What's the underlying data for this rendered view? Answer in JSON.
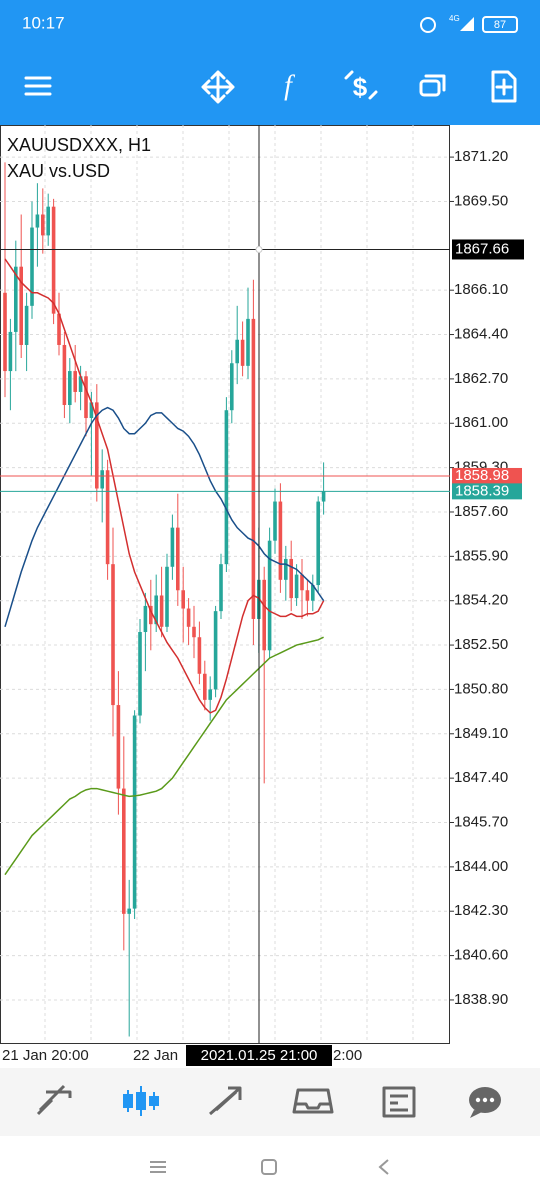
{
  "status_bar": {
    "time": "10:17",
    "network": "4G",
    "battery": "87"
  },
  "chart_data": {
    "type": "candlestick",
    "title": "XAUUSDXXX, H1",
    "subtitle": "XAU vs.USD",
    "up_color": "#26a69a",
    "down_color": "#ef5350",
    "open": [
      1866,
      1863,
      1864.5,
      1867,
      1864,
      1865.5,
      1868.5,
      1869,
      1868.2,
      1869.3,
      1865.2,
      1864,
      1861.7,
      1863,
      1862.2,
      1862.8,
      1861.2,
      1861.8,
      1858.5,
      1859.2,
      1855.6,
      1850.2,
      1847,
      1842.2,
      1842.4,
      1849.8,
      1853,
      1854,
      1853.3,
      1854.4,
      1853.2,
      1855.5,
      1857,
      1854.6,
      1853.9,
      1853.2,
      1852.8,
      1851.4,
      1850.4,
      1850.8,
      1853.8,
      1855.6,
      1861.5,
      1863.3,
      1864.2,
      1863.2,
      1865,
      1853.5,
      1855,
      1852.3,
      1856.5,
      1858,
      1855,
      1855.8,
      1854.3,
      1855.2,
      1854.6,
      1854.2,
      1854.8,
      1858
    ],
    "high": [
      1871,
      1865,
      1868,
      1869,
      1866,
      1869.5,
      1870.2,
      1870,
      1869.8,
      1869.6,
      1866,
      1864.5,
      1863.5,
      1864,
      1863.2,
      1863,
      1862.2,
      1862.5,
      1860,
      1859.6,
      1857,
      1851.5,
      1849,
      1843.5,
      1850,
      1853.5,
      1854.5,
      1855,
      1855.2,
      1855.5,
      1856,
      1857.5,
      1858.3,
      1855.5,
      1854.3,
      1854,
      1853.4,
      1851.9,
      1851.3,
      1854,
      1856,
      1862,
      1863.8,
      1865.5,
      1864.9,
      1866.2,
      1866.5,
      1857,
      1855.5,
      1857,
      1858.5,
      1858.7,
      1856.3,
      1856.5,
      1855.6,
      1855.8,
      1855,
      1855.2,
      1858.2,
      1859.5
    ],
    "low": [
      1862,
      1861.5,
      1863,
      1863.5,
      1863,
      1865,
      1867,
      1867.5,
      1867.8,
      1864.8,
      1863.6,
      1861.2,
      1861,
      1861.8,
      1861.5,
      1860.5,
      1859,
      1858,
      1857.2,
      1855,
      1849,
      1846,
      1840.8,
      1837.5,
      1842,
      1849.5,
      1851.5,
      1852.3,
      1853,
      1852.8,
      1853,
      1855,
      1854,
      1852.6,
      1852.5,
      1852,
      1851,
      1850,
      1849.6,
      1850.5,
      1853.5,
      1855.3,
      1861,
      1862.5,
      1862.8,
      1862.7,
      1852.5,
      1852.2,
      1847.2,
      1852,
      1856,
      1854.5,
      1854.2,
      1853.8,
      1854,
      1853.5,
      1853.6,
      1853.8,
      1854.5,
      1857.5
    ],
    "close": [
      1863,
      1864.5,
      1867,
      1864,
      1865.5,
      1868.5,
      1869,
      1868.2,
      1869.3,
      1865.2,
      1864,
      1861.7,
      1863,
      1862.2,
      1862.8,
      1861.2,
      1861.8,
      1858.5,
      1859.2,
      1855.6,
      1850.2,
      1847,
      1842.2,
      1842.4,
      1849.8,
      1853,
      1854,
      1853.3,
      1854.4,
      1853.2,
      1855.5,
      1857,
      1854.6,
      1853.9,
      1853.2,
      1852.8,
      1851.4,
      1850.4,
      1850.8,
      1853.8,
      1855.6,
      1861.5,
      1863.3,
      1864.2,
      1863.2,
      1865,
      1853.5,
      1855,
      1852.3,
      1856.5,
      1858,
      1855,
      1855.8,
      1854.3,
      1855.2,
      1854.6,
      1854.2,
      1854.8,
      1858,
      1858.39
    ],
    "moving_averages": [
      {
        "color": "#d32f2f",
        "values": [
          1867.3,
          1867.0,
          1866.7,
          1866.4,
          1866.2,
          1866.0,
          1866.0,
          1865.9,
          1865.8,
          1865.6,
          1865.2,
          1864.6,
          1864.0,
          1863.4,
          1862.8,
          1862.3,
          1861.8,
          1861.2,
          1860.6,
          1860.0,
          1859.0,
          1858.0,
          1857.0,
          1856.0,
          1855.3,
          1854.8,
          1854.3,
          1853.8,
          1853.4,
          1853.0,
          1852.6,
          1852.3,
          1852.0,
          1851.6,
          1851.2,
          1850.8,
          1850.4,
          1850.1,
          1849.9,
          1850.0,
          1850.5,
          1851.2,
          1852.0,
          1852.8,
          1853.6,
          1854.2,
          1854.4,
          1854.3,
          1854.0,
          1853.8,
          1853.7,
          1853.6,
          1853.6,
          1853.7,
          1853.6,
          1853.6,
          1853.7,
          1853.7,
          1853.8,
          1854.2
        ]
      },
      {
        "color": "#1a4f8a",
        "values": [
          1853.2,
          1853.9,
          1854.6,
          1855.3,
          1855.9,
          1856.5,
          1857.0,
          1857.4,
          1857.8,
          1858.2,
          1858.6,
          1859.0,
          1859.4,
          1859.8,
          1860.2,
          1860.6,
          1861.0,
          1861.3,
          1861.5,
          1861.6,
          1861.5,
          1861.2,
          1860.8,
          1860.6,
          1860.6,
          1860.8,
          1861.0,
          1861.3,
          1861.4,
          1861.4,
          1861.2,
          1861.0,
          1860.8,
          1860.7,
          1860.5,
          1860.2,
          1859.8,
          1859.3,
          1858.8,
          1858.4,
          1858.1,
          1857.7,
          1857.3,
          1857.0,
          1856.8,
          1856.6,
          1856.5,
          1856.3,
          1856.0,
          1855.8,
          1855.7,
          1855.6,
          1855.6,
          1855.5,
          1855.4,
          1855.2,
          1855.0,
          1854.8,
          1854.5,
          1854.2
        ]
      },
      {
        "color": "#5a9a1a",
        "values": [
          1843.7,
          1844.0,
          1844.3,
          1844.6,
          1844.9,
          1845.2,
          1845.4,
          1845.6,
          1845.8,
          1846.0,
          1846.2,
          1846.4,
          1846.6,
          1846.7,
          1846.85,
          1846.95,
          1847.0,
          1847.0,
          1846.95,
          1846.9,
          1846.85,
          1846.8,
          1846.75,
          1846.7,
          1846.72,
          1846.75,
          1846.8,
          1846.85,
          1846.9,
          1847.0,
          1847.2,
          1847.4,
          1847.7,
          1848.0,
          1848.3,
          1848.6,
          1848.9,
          1849.2,
          1849.5,
          1849.8,
          1850.1,
          1850.4,
          1850.6,
          1850.8,
          1851.0,
          1851.2,
          1851.4,
          1851.6,
          1851.8,
          1852.0,
          1852.1,
          1852.2,
          1852.3,
          1852.4,
          1852.5,
          1852.55,
          1852.6,
          1852.65,
          1852.7,
          1852.8
        ]
      }
    ],
    "ylim": [
      1837.25,
      1872.43
    ],
    "yticks": [
      {
        "value": 1871.2,
        "label": "1871.20"
      },
      {
        "value": 1869.5,
        "label": "1869.50"
      },
      {
        "value": 1866.1,
        "label": "1866.10"
      },
      {
        "value": 1864.4,
        "label": "1864.40"
      },
      {
        "value": 1862.7,
        "label": "1862.70"
      },
      {
        "value": 1861,
        "label": "1861.00"
      },
      {
        "value": 1859.3,
        "label": "1859.30"
      },
      {
        "value": 1857.6,
        "label": "1857.60"
      },
      {
        "value": 1855.9,
        "label": "1855.90"
      },
      {
        "value": 1854.2,
        "label": "1854.20"
      },
      {
        "value": 1852.5,
        "label": "1852.50"
      },
      {
        "value": 1850.8,
        "label": "1850.80"
      },
      {
        "value": 1849.1,
        "label": "1849.10"
      },
      {
        "value": 1847.4,
        "label": "1847.40"
      },
      {
        "value": 1845.7,
        "label": "1845.70"
      },
      {
        "value": 1844,
        "label": "1844.00"
      },
      {
        "value": 1842.3,
        "label": "1842.30"
      },
      {
        "value": 1840.6,
        "label": "1840.60"
      },
      {
        "value": 1838.9,
        "label": "1838.90"
      }
    ],
    "grid": true,
    "price_lines": [
      {
        "value": 1858.98,
        "color": "#ef5350"
      },
      {
        "value": 1858.39,
        "color": "#26a69a"
      }
    ],
    "crosshair": {
      "price": 1867.66,
      "time": "2021.01.25 21:00"
    },
    "x_labels": [
      "21 Jan 20:00",
      "22 Jan",
      "2:00"
    ]
  }
}
